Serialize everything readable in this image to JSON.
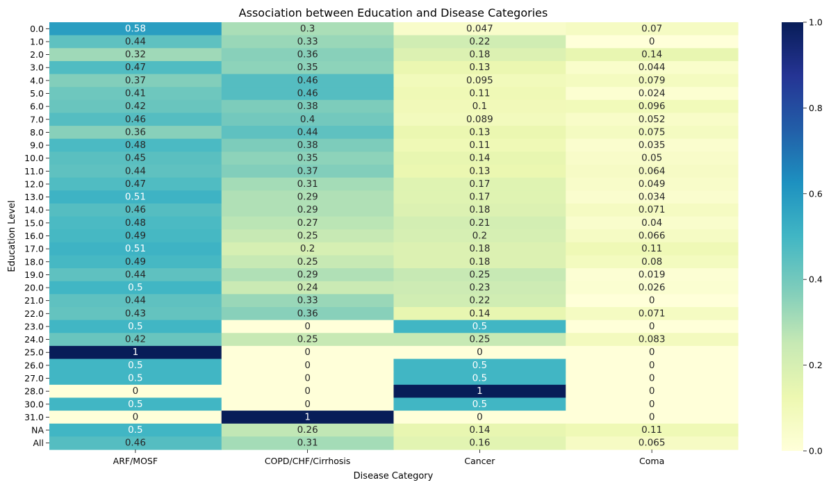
{
  "chart_data": {
    "type": "heatmap",
    "title": "Association between Education and Disease Categories",
    "xlabel": "Disease Category",
    "ylabel": "Education Level",
    "columns": [
      "ARF/MOSF",
      "COPD/CHF/Cirrhosis",
      "Cancer",
      "Coma"
    ],
    "rows": [
      "0.0",
      "1.0",
      "2.0",
      "3.0",
      "4.0",
      "5.0",
      "6.0",
      "7.0",
      "8.0",
      "9.0",
      "10.0",
      "11.0",
      "12.0",
      "13.0",
      "14.0",
      "15.0",
      "16.0",
      "17.0",
      "18.0",
      "19.0",
      "20.0",
      "21.0",
      "22.0",
      "23.0",
      "24.0",
      "25.0",
      "26.0",
      "27.0",
      "28.0",
      "30.0",
      "31.0",
      "NA",
      "All"
    ],
    "values": [
      [
        0.58,
        0.3,
        0.047,
        0.07
      ],
      [
        0.44,
        0.33,
        0.22,
        0
      ],
      [
        0.32,
        0.36,
        0.18,
        0.14
      ],
      [
        0.47,
        0.35,
        0.13,
        0.044
      ],
      [
        0.37,
        0.46,
        0.095,
        0.079
      ],
      [
        0.41,
        0.46,
        0.11,
        0.024
      ],
      [
        0.42,
        0.38,
        0.1,
        0.096
      ],
      [
        0.46,
        0.4,
        0.089,
        0.052
      ],
      [
        0.36,
        0.44,
        0.13,
        0.075
      ],
      [
        0.48,
        0.38,
        0.11,
        0.035
      ],
      [
        0.45,
        0.35,
        0.14,
        0.05
      ],
      [
        0.44,
        0.37,
        0.13,
        0.064
      ],
      [
        0.47,
        0.31,
        0.17,
        0.049
      ],
      [
        0.51,
        0.29,
        0.17,
        0.034
      ],
      [
        0.46,
        0.29,
        0.18,
        0.071
      ],
      [
        0.48,
        0.27,
        0.21,
        0.04
      ],
      [
        0.49,
        0.25,
        0.2,
        0.066
      ],
      [
        0.51,
        0.2,
        0.18,
        0.11
      ],
      [
        0.49,
        0.25,
        0.18,
        0.08
      ],
      [
        0.44,
        0.29,
        0.25,
        0.019
      ],
      [
        0.5,
        0.24,
        0.23,
        0.026
      ],
      [
        0.44,
        0.33,
        0.22,
        0
      ],
      [
        0.43,
        0.36,
        0.14,
        0.071
      ],
      [
        0.5,
        0,
        0.5,
        0
      ],
      [
        0.42,
        0.25,
        0.25,
        0.083
      ],
      [
        1,
        0,
        0,
        0
      ],
      [
        0.5,
        0,
        0.5,
        0
      ],
      [
        0.5,
        0,
        0.5,
        0
      ],
      [
        0,
        0,
        1,
        0
      ],
      [
        0.5,
        0,
        0.5,
        0
      ],
      [
        0,
        1,
        0,
        0
      ],
      [
        0.5,
        0.26,
        0.14,
        0.11
      ],
      [
        0.46,
        0.31,
        0.16,
        0.065
      ]
    ],
    "colormap": "YlGnBu",
    "vmin": 0,
    "vmax": 1,
    "colorbar_ticks": [
      "0.0",
      "0.2",
      "0.4",
      "0.6",
      "0.8",
      "1.0"
    ],
    "annotated": true,
    "colorbar_position": "right"
  }
}
